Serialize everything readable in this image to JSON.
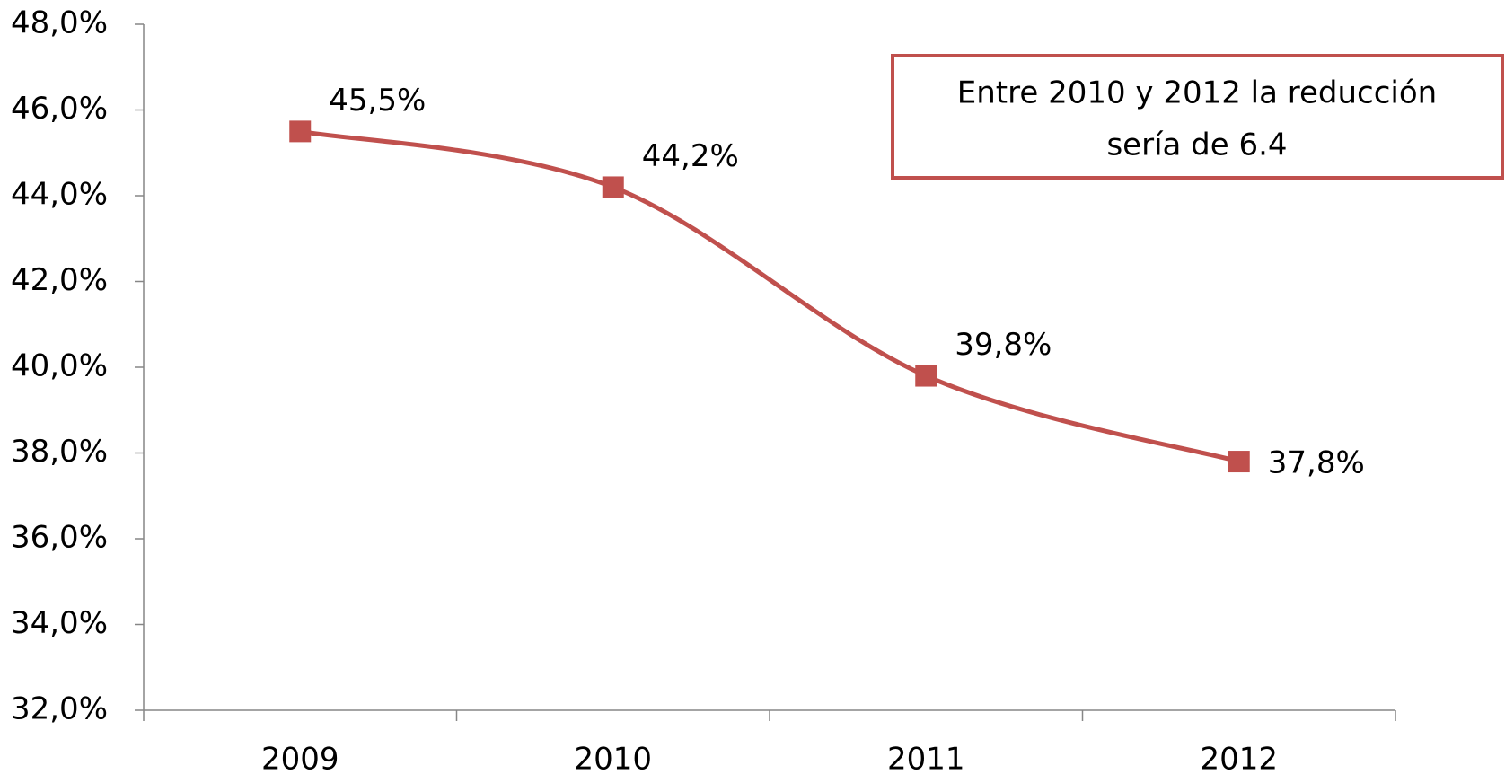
{
  "chart_data": {
    "type": "line",
    "categories": [
      "2009",
      "2010",
      "2011",
      "2012"
    ],
    "series": [
      {
        "color": "#c0504d",
        "values": [
          45.5,
          44.2,
          39.8,
          37.8
        ],
        "value_labels": [
          "45,5%",
          "44,2%",
          "39,8%",
          "37,8%"
        ]
      }
    ],
    "ylim": [
      32,
      48
    ],
    "yticks": [
      {
        "value": 32,
        "label": "32,0%"
      },
      {
        "value": 34,
        "label": "34,0%"
      },
      {
        "value": 36,
        "label": "36,0%"
      },
      {
        "value": 38,
        "label": "38,0%"
      },
      {
        "value": 40,
        "label": "40,0%"
      },
      {
        "value": 42,
        "label": "42,0%"
      },
      {
        "value": 44,
        "label": "44,0%"
      },
      {
        "value": 46,
        "label": "46,0%"
      },
      {
        "value": 48,
        "label": "48,0%"
      }
    ],
    "annotation": [
      "Entre 2010 y 2012 la reducción",
      "sería de 6.4"
    ],
    "smooth": true
  }
}
